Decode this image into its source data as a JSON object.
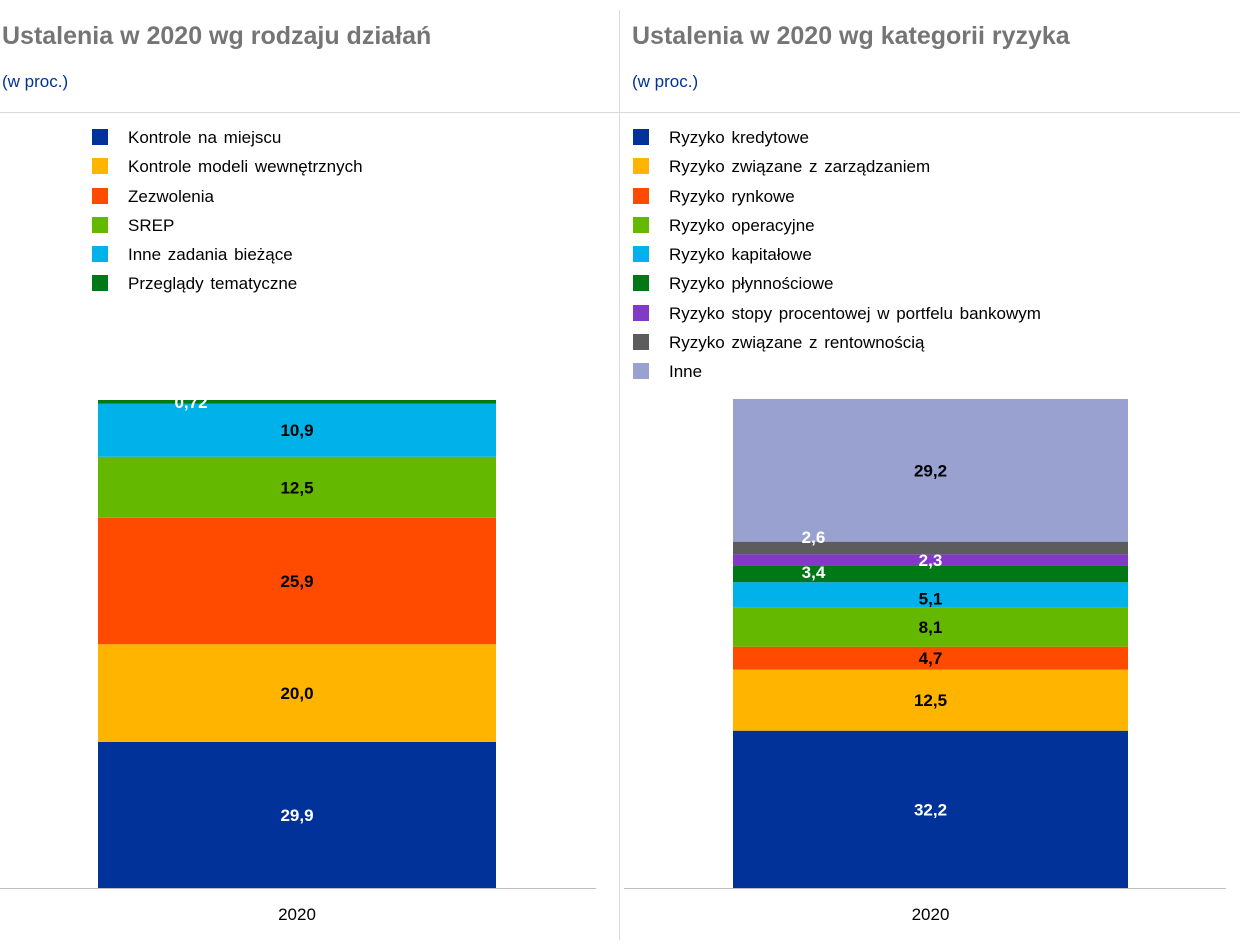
{
  "chart_data": [
    {
      "type": "bar",
      "stacked": true,
      "title": "Ustalenia w 2020 wg rodzaju działań",
      "subtitle": "(w proc.)",
      "categories": [
        "2020"
      ],
      "ylim": [
        0,
        100
      ],
      "series": [
        {
          "name": "Kontrole na miejscu",
          "values": [
            29.9
          ],
          "label": "29,9",
          "color": "#003299",
          "label_color": "#ffffff"
        },
        {
          "name": "Kontrole modeli wewnętrznych",
          "values": [
            20.0
          ],
          "label": "20,0",
          "color": "#FFB400",
          "label_color": "#000000"
        },
        {
          "name": "Zezwolenia",
          "values": [
            25.9
          ],
          "label": "25,9",
          "color": "#FF4B00",
          "label_color": "#000000"
        },
        {
          "name": "SREP",
          "values": [
            12.5
          ],
          "label": "12,5",
          "color": "#65B800",
          "label_color": "#000000"
        },
        {
          "name": "Inne zadania bieżące",
          "values": [
            10.9
          ],
          "label": "10,9",
          "color": "#00B1EA",
          "label_color": "#000000"
        },
        {
          "name": "Przeglądy tematyczne",
          "values": [
            0.72
          ],
          "label": "0,72",
          "color": "#007816",
          "label_color": "#ffffff"
        }
      ]
    },
    {
      "type": "bar",
      "stacked": true,
      "title": "Ustalenia w 2020 wg kategorii ryzyka",
      "subtitle": "(w proc.)",
      "categories": [
        "2020"
      ],
      "ylim": [
        0,
        100
      ],
      "series": [
        {
          "name": "Ryzyko kredytowe",
          "values": [
            32.2
          ],
          "label": "32,2",
          "color": "#003299",
          "label_color": "#ffffff"
        },
        {
          "name": "Ryzyko związane z zarządzaniem",
          "values": [
            12.5
          ],
          "label": "12,5",
          "color": "#FFB400",
          "label_color": "#000000"
        },
        {
          "name": "Ryzyko rynkowe",
          "values": [
            4.7
          ],
          "label": "4,7",
          "color": "#FF4B00",
          "label_color": "#000000"
        },
        {
          "name": "Ryzyko operacyjne",
          "values": [
            8.1
          ],
          "label": "8,1",
          "color": "#65B800",
          "label_color": "#000000"
        },
        {
          "name": "Ryzyko kapitałowe",
          "values": [
            5.1
          ],
          "label": "5,1",
          "color": "#00B1EA",
          "label_color": "#000000"
        },
        {
          "name": "Ryzyko płynnościowe",
          "values": [
            3.4
          ],
          "label": "3,4",
          "color": "#007816",
          "label_color": "#ffffff"
        },
        {
          "name": "Ryzyko stopy procentowej w portfelu bankowym",
          "values": [
            2.3
          ],
          "label": "2,3",
          "color": "#8139C6",
          "label_color": "#ffffff"
        },
        {
          "name": "Ryzyko związane z rentownością",
          "values": [
            2.6
          ],
          "label": "2,6",
          "color": "#5C5C5C",
          "label_color": "#ffffff"
        },
        {
          "name": "Inne",
          "values": [
            29.2
          ],
          "label": "29,2",
          "color": "#98A1D0",
          "label_color": "#000000"
        }
      ]
    }
  ]
}
